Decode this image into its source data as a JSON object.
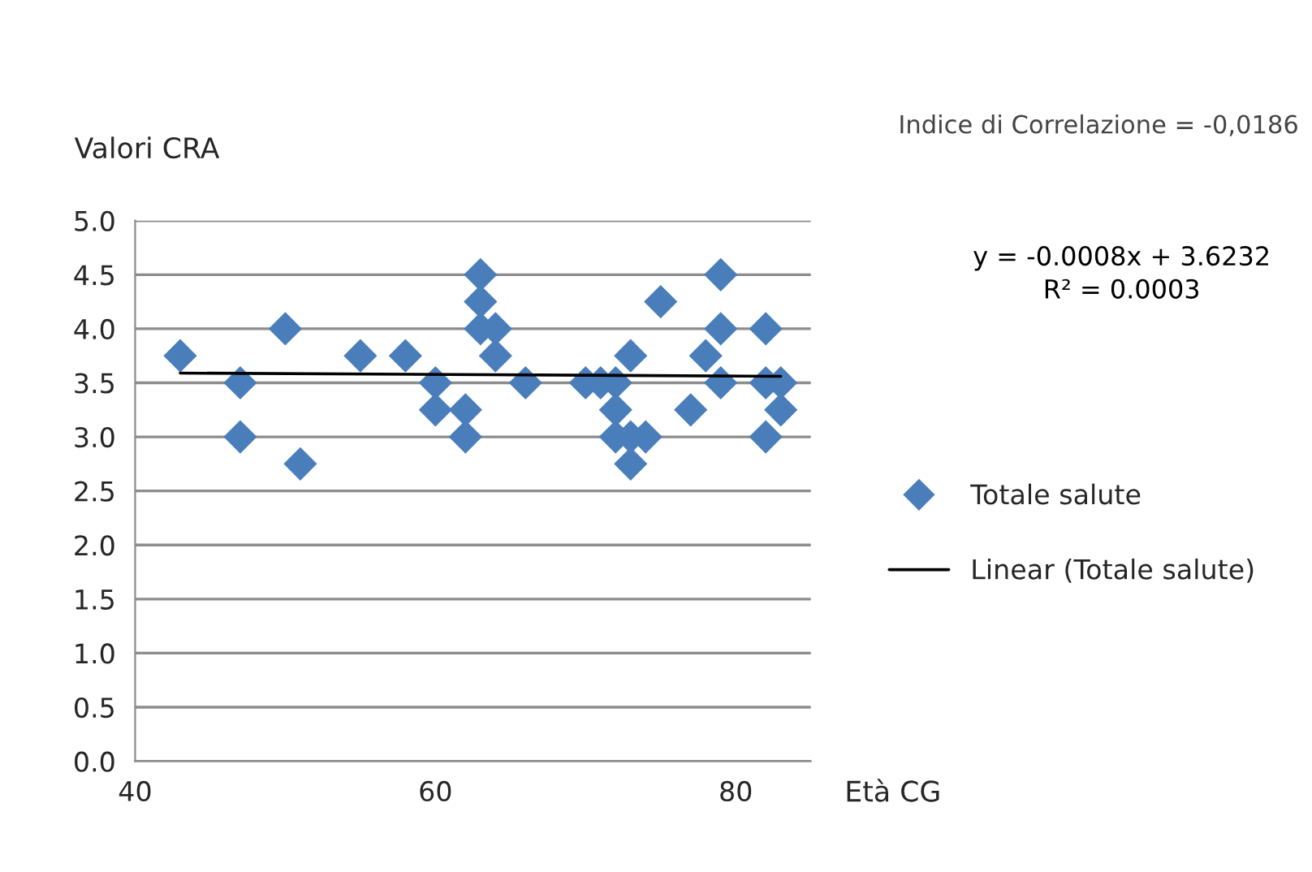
{
  "chart_data": {
    "type": "scatter",
    "xlabel": "Età CG",
    "ylabel": "Valori CRA",
    "annotations": [
      "Indice di Correlazione = -0,0186",
      "y = -0.0008x + 3.6232\nR² = 0.0003"
    ],
    "series": [
      {
        "name": "Totale salute",
        "color": "#4a7ebb",
        "marker": "diamond",
        "x": [
          43,
          47,
          47,
          50,
          51,
          55,
          58,
          60,
          60,
          62,
          62,
          63,
          63,
          63,
          64,
          64,
          66,
          70,
          71,
          72,
          72,
          72,
          73,
          73,
          73,
          74,
          75,
          77,
          78,
          79,
          79,
          79,
          82,
          82,
          82,
          83,
          83
        ],
        "values": [
          3.75,
          3.5,
          3.0,
          4.0,
          2.75,
          3.75,
          3.75,
          3.5,
          3.25,
          3.25,
          3.0,
          4.5,
          4.25,
          4.0,
          4.0,
          3.75,
          3.5,
          3.5,
          3.5,
          3.5,
          3.25,
          3.0,
          3.75,
          3.0,
          2.75,
          3.0,
          4.25,
          3.25,
          3.75,
          4.5,
          4.0,
          3.5,
          4.0,
          3.5,
          3.0,
          3.5,
          3.25
        ]
      },
      {
        "name": "Linear (Totale salute)",
        "type": "line",
        "color": "#000000",
        "line_style": "solid",
        "marker": "none",
        "x": [
          43,
          83
        ],
        "values": [
          3.59,
          3.56
        ]
      }
    ],
    "xlim": [
      40,
      85
    ],
    "ylim": [
      0,
      5
    ],
    "xticks": [
      40,
      60,
      80
    ],
    "yticks": [
      {
        "value": 0,
        "label": "0.0"
      },
      {
        "value": 0.5,
        "label": "0.5"
      },
      {
        "value": 1,
        "label": "1.0"
      },
      {
        "value": 1.5,
        "label": "1.5"
      },
      {
        "value": 2,
        "label": "2.0"
      },
      {
        "value": 2.5,
        "label": "2.5"
      },
      {
        "value": 3,
        "label": "3.0"
      },
      {
        "value": 3.5,
        "label": "3.5"
      },
      {
        "value": 4,
        "label": "4.0"
      },
      {
        "value": 4.5,
        "label": "4.5"
      },
      {
        "value": 5,
        "label": "5.0"
      }
    ],
    "grid": "y",
    "legend": "right"
  }
}
